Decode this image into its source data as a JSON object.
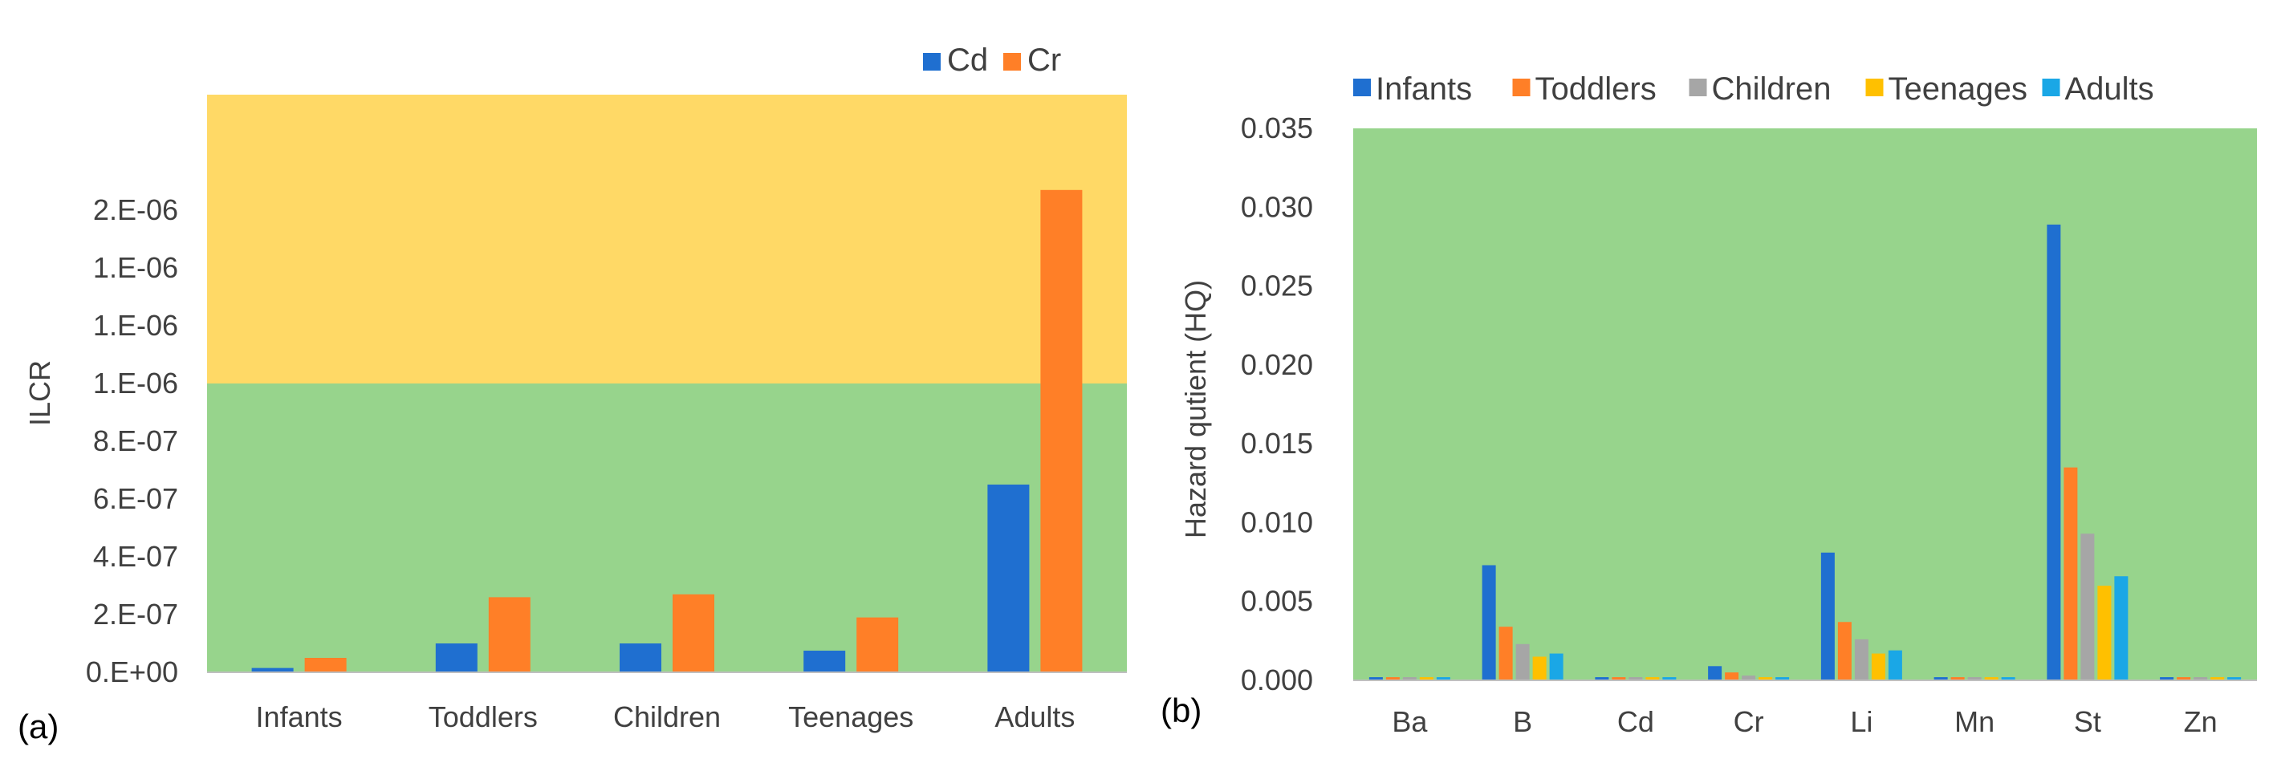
{
  "colors": {
    "green_zone": "#97D48C",
    "yellow_zone": "#FFD966",
    "Infants": "#1F6FD0",
    "Toddlers": "#FF7F27",
    "Children": "#A6A6A6",
    "Teenages": "#FFC000",
    "Adults": "#1AA7E6",
    "Cd": "#1F6FD0",
    "Cr": "#FF7F27"
  },
  "chart_data": [
    {
      "type": "bar",
      "panel_label": "(a)",
      "title": "",
      "xlabel": "",
      "ylabel": "ILCR",
      "ylim": [
        0,
        2e-06
      ],
      "threshold": 1e-06,
      "y_tick_values": [
        0,
        2e-07,
        4e-07,
        6e-07,
        8e-07,
        1e-06,
        1.2e-06,
        1.4e-06,
        1.6e-06
      ],
      "y_tick_labels": [
        "0.E+00",
        "2.E-07",
        "4.E-07",
        "6.E-07",
        "8.E-07",
        "1.E-06",
        "1.E-06",
        "1.E-06",
        "2.E-06"
      ],
      "categories": [
        "Infants",
        "Toddlers",
        "Children",
        "Teenages",
        "Adults"
      ],
      "series": [
        {
          "name": "Cd",
          "values": [
            1.5e-08,
            1e-07,
            1e-07,
            7.5e-08,
            6.5e-07
          ]
        },
        {
          "name": "Cr",
          "values": [
            5e-08,
            2.6e-07,
            2.7e-07,
            1.9e-07,
            1.67e-06
          ]
        }
      ],
      "legend_position": "top-right"
    },
    {
      "type": "bar",
      "panel_label": "(b)",
      "title": "",
      "xlabel": "",
      "ylabel": "Hazard qutient (HQ)",
      "ylim": [
        0,
        0.035
      ],
      "y_tick_values": [
        0,
        0.005,
        0.01,
        0.015,
        0.02,
        0.025,
        0.03,
        0.035
      ],
      "y_tick_labels": [
        "0.000",
        "0.005",
        "0.010",
        "0.015",
        "0.020",
        "0.025",
        "0.030",
        "0.035"
      ],
      "categories": [
        "Ba",
        "B",
        "Cd",
        "Cr",
        "Li",
        "Mn",
        "St",
        "Zn"
      ],
      "series": [
        {
          "name": "Infants",
          "values": [
            0.0002,
            0.0073,
            0.0002,
            0.0009,
            0.0081,
            0.0002,
            0.0289,
            0.0002
          ]
        },
        {
          "name": "Toddlers",
          "values": [
            0.0002,
            0.0034,
            0.0002,
            0.0005,
            0.0037,
            0.0002,
            0.0135,
            0.0002
          ]
        },
        {
          "name": "Children",
          "values": [
            0.0002,
            0.0023,
            0.0002,
            0.0003,
            0.0026,
            0.0002,
            0.0093,
            0.0002
          ]
        },
        {
          "name": "Teenages",
          "values": [
            0.0002,
            0.0015,
            0.0002,
            0.0002,
            0.0017,
            0.0002,
            0.006,
            0.0002
          ]
        },
        {
          "name": "Adults",
          "values": [
            0.0002,
            0.0017,
            0.0002,
            0.0002,
            0.0019,
            0.0002,
            0.0066,
            0.0002
          ]
        }
      ],
      "legend_position": "top"
    }
  ]
}
